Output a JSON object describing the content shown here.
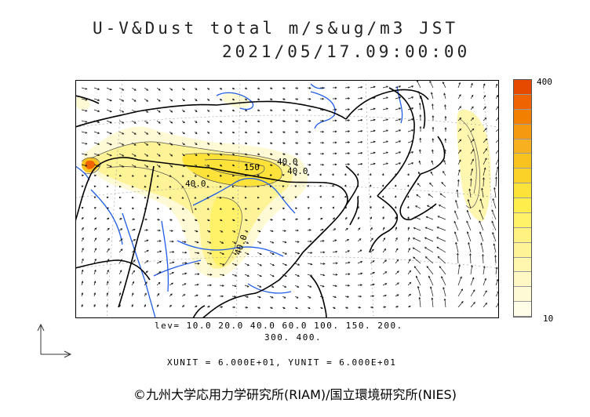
{
  "title": {
    "line1": "U-V&Dust total m/s&ug/m3 JST",
    "line2": "2021/05/17.09:00:00"
  },
  "colorbar": {
    "max_label": "400",
    "min_label": "10",
    "colors": [
      "#e64a00",
      "#f06400",
      "#f37f00",
      "#f59a10",
      "#f7b020",
      "#f8c21f",
      "#fbd328",
      "#fde23a",
      "#ffee4c",
      "#fff168",
      "#fff280",
      "#fff397",
      "#fff6b0",
      "#fff8c4",
      "#fffad6",
      "#fffce8"
    ]
  },
  "levels": {
    "line1": "lev= 10.0 20.0 40.0 60.0 100. 150. 200.",
    "line2": "300. 400."
  },
  "units": "XUNIT = 6.000E+01, YUNIT = 6.000E+01",
  "contour_labels": [
    "40.0",
    "40.0",
    "150",
    "40.0",
    "40.0"
  ],
  "copyright": "©九州大学応用力学研究所(RIAM)/国立環境研究所(NIES)"
}
